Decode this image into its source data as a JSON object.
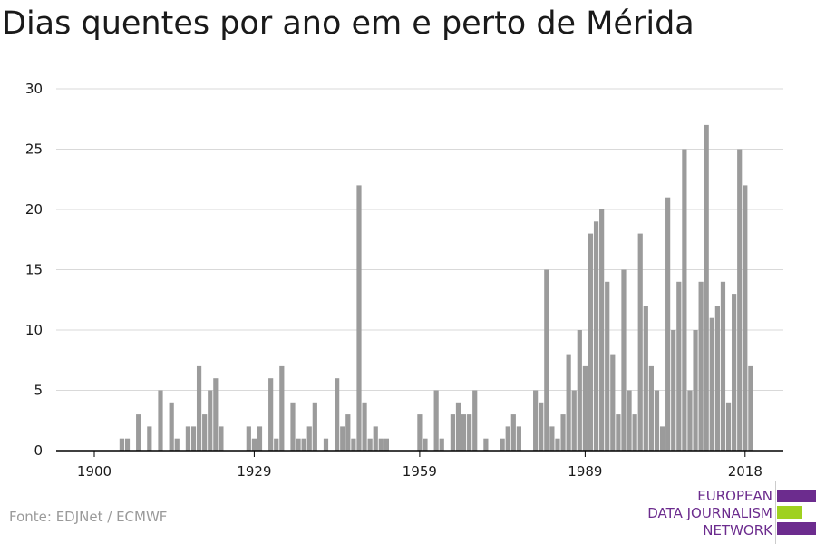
{
  "title": "Dias quentes por ano em e perto de Mérida",
  "source": "Fonte: EDJNet / ECMWF",
  "logo": {
    "lines": [
      "EUROPEAN",
      "DATA JOURNALISM",
      "NETWORK"
    ],
    "colors": {
      "purple": "#6c2c8e",
      "green": "#9fd11f"
    }
  },
  "colors": {
    "bar": "#9b9b9b",
    "grid": "#d9d9d9",
    "axis": "#000000",
    "text": "#1a1a1a"
  },
  "chart_data": {
    "type": "bar",
    "title": "Dias quentes por ano em e perto de Mérida",
    "xlabel": "",
    "ylabel": "",
    "ylim": [
      0,
      30
    ],
    "yticks": [
      0,
      5,
      10,
      15,
      20,
      25,
      30
    ],
    "xticks": [
      1900,
      1929,
      1959,
      1989,
      2018
    ],
    "grid": true,
    "x": [
      1900,
      1901,
      1902,
      1903,
      1904,
      1905,
      1906,
      1907,
      1908,
      1909,
      1910,
      1911,
      1912,
      1913,
      1914,
      1915,
      1916,
      1917,
      1918,
      1919,
      1920,
      1921,
      1922,
      1923,
      1924,
      1925,
      1926,
      1927,
      1928,
      1929,
      1930,
      1931,
      1932,
      1933,
      1934,
      1935,
      1936,
      1937,
      1938,
      1939,
      1940,
      1941,
      1942,
      1943,
      1944,
      1945,
      1946,
      1947,
      1948,
      1949,
      1950,
      1951,
      1952,
      1953,
      1954,
      1955,
      1956,
      1957,
      1958,
      1959,
      1960,
      1961,
      1962,
      1963,
      1964,
      1965,
      1966,
      1967,
      1968,
      1969,
      1970,
      1971,
      1972,
      1973,
      1974,
      1975,
      1976,
      1977,
      1978,
      1979,
      1980,
      1981,
      1982,
      1983,
      1984,
      1985,
      1986,
      1987,
      1988,
      1989,
      1990,
      1991,
      1992,
      1993,
      1994,
      1995,
      1996,
      1997,
      1998,
      1999,
      2000,
      2001,
      2002,
      2003,
      2004,
      2005,
      2006,
      2007,
      2008,
      2009,
      2010,
      2011,
      2012,
      2013,
      2014,
      2015,
      2016,
      2017,
      2018,
      2019,
      2020
    ],
    "values": [
      0,
      0,
      0,
      0,
      0,
      1,
      1,
      0,
      3,
      0,
      2,
      0,
      5,
      0,
      4,
      1,
      0,
      2,
      2,
      7,
      3,
      5,
      6,
      2,
      0,
      0,
      0,
      0,
      2,
      1,
      2,
      0,
      6,
      1,
      7,
      0,
      4,
      1,
      1,
      2,
      4,
      0,
      1,
      0,
      6,
      2,
      3,
      1,
      22,
      4,
      1,
      2,
      1,
      1,
      0,
      0,
      0,
      0,
      0,
      3,
      1,
      0,
      5,
      1,
      0,
      3,
      4,
      3,
      3,
      5,
      0,
      1,
      0,
      0,
      1,
      2,
      3,
      2,
      0,
      0,
      5,
      4,
      15,
      2,
      1,
      3,
      8,
      5,
      10,
      7,
      18,
      19,
      20,
      14,
      8,
      3,
      15,
      5,
      3,
      18,
      12,
      7,
      5,
      2,
      21,
      10,
      14,
      25,
      5,
      10,
      14,
      27,
      11,
      12,
      14,
      4,
      13,
      25,
      22,
      7,
      0
    ]
  }
}
